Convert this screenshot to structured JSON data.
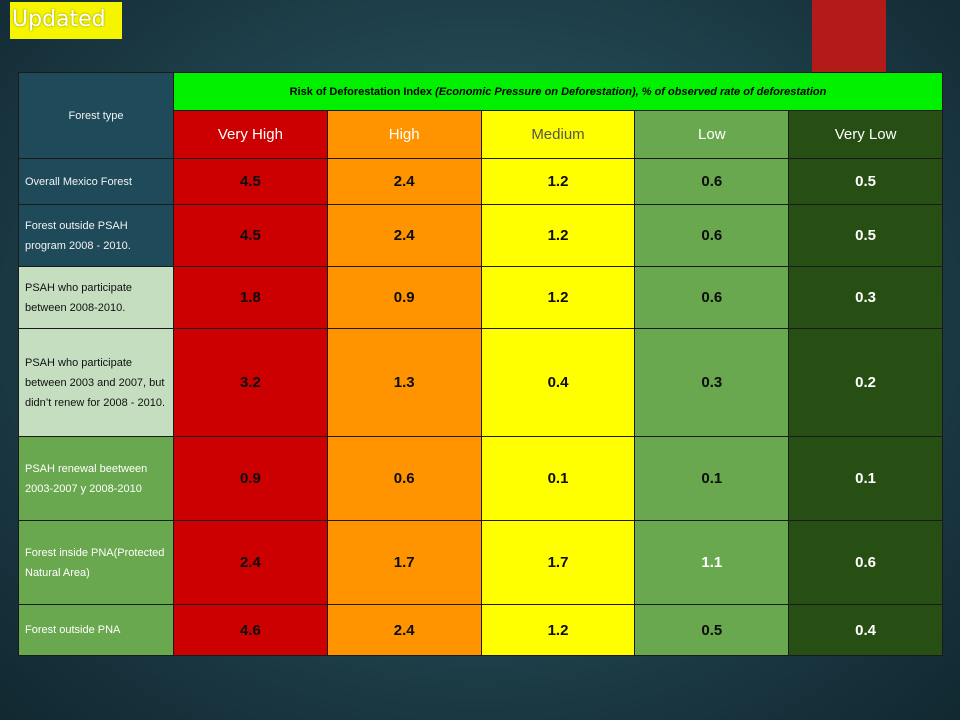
{
  "badge": {
    "label": "Updated"
  },
  "table": {
    "corner_header": "Forest type",
    "index_title_prefix": "Risk of Deforestation Index",
    "index_title_italic": "(Economic Pressure on Deforestation)",
    "index_title_suffix": ", % of observed rate of deforestation",
    "levels": [
      "Very High",
      "High",
      "Medium",
      "Low",
      "Very Low"
    ],
    "rows": [
      {
        "label": "Overall Mexico Forest",
        "values": [
          "4.5",
          "2.4",
          "1.2",
          "0.6",
          "0.5"
        ]
      },
      {
        "label": "Forest outside PSAH program 2008  - 2010.",
        "values": [
          "4.5",
          "2.4",
          "1.2",
          "0.6",
          "0.5"
        ]
      },
      {
        "label": "PSAH who participate between 2008-2010.",
        "values": [
          "1.8",
          "0.9",
          "1.2",
          "0.6",
          "0.3"
        ]
      },
      {
        "label": "PSAH who participate between 2003 and 2007,  but didn’t renew for 2008  - 2010.",
        "values": [
          "3.2",
          "1.3",
          "0.4",
          "0.3",
          "0.2"
        ]
      },
      {
        "label": "PSAH renewal beetween 2003-2007 y 2008-2010",
        "values": [
          "0.9",
          "0.6",
          "0.1",
          "0.1",
          "0.1"
        ]
      },
      {
        "label": "Forest inside PNA(Protected Natural Area)",
        "values": [
          "2.4",
          "1.7",
          "1.7",
          "1.1",
          "0.6"
        ]
      },
      {
        "label": "Forest outside PNA",
        "values": [
          "4.6",
          "2.4",
          "1.2",
          "0.5",
          "0.4"
        ]
      }
    ]
  },
  "colors": {
    "very_high": "#cc0000",
    "high": "#ff9400",
    "medium": "#ffff00",
    "low": "#6aa84f",
    "very_low": "#274e13",
    "index_header": "#00f000",
    "badge": "#f5f500",
    "accent_tab": "#b31b1b"
  }
}
